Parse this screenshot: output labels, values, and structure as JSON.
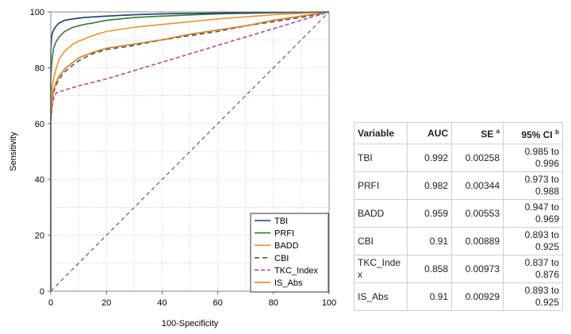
{
  "chart_data": {
    "type": "line",
    "title": "",
    "xlabel": "100-Specificity",
    "ylabel": "Sensitivity",
    "xlim": [
      0,
      100
    ],
    "ylim": [
      0,
      100
    ],
    "xticks": [
      0,
      20,
      40,
      60,
      80,
      100
    ],
    "yticks": [
      0,
      20,
      40,
      60,
      80,
      100
    ],
    "grid": true,
    "legend_position": "bottom-right",
    "reference_line": true,
    "series": [
      {
        "name": "TBI",
        "color": "#1f3a6e",
        "dash": "solid",
        "x": [
          0,
          0,
          0.3,
          0.6,
          1,
          2,
          3,
          5,
          8,
          12,
          20,
          30,
          40,
          60,
          80,
          100
        ],
        "y": [
          0,
          86,
          91,
          92.5,
          93.5,
          95,
          96,
          97,
          97.5,
          98,
          98.5,
          99,
          99.3,
          99.6,
          99.8,
          100
        ]
      },
      {
        "name": "PRFI",
        "color": "#2e7d32",
        "dash": "solid",
        "x": [
          0,
          0,
          0.3,
          0.6,
          1,
          2,
          3,
          5,
          8,
          12,
          15,
          20,
          30,
          40,
          60,
          80,
          100
        ],
        "y": [
          0,
          75,
          81,
          84,
          87,
          89.5,
          91,
          93,
          94.5,
          95.5,
          96,
          97,
          98,
          98.5,
          99.3,
          99.7,
          100
        ]
      },
      {
        "name": "BADD",
        "color": "#e8962e",
        "dash": "solid",
        "x": [
          0,
          0,
          0.5,
          1,
          2,
          3,
          5,
          8,
          10,
          15,
          20,
          30,
          40,
          60,
          80,
          100
        ],
        "y": [
          0,
          64,
          73,
          76,
          80,
          83,
          86,
          88.5,
          89.5,
          91.5,
          93,
          94.5,
          95.5,
          97.5,
          99,
          100
        ]
      },
      {
        "name": "CBI",
        "color": "#555555",
        "dash": "6,4",
        "x": [
          0,
          0,
          0.5,
          1,
          2,
          3,
          5,
          8,
          10,
          15,
          20,
          30,
          40,
          50,
          60,
          70,
          80,
          90,
          100
        ],
        "y": [
          0,
          61,
          68,
          71,
          74,
          76,
          78.5,
          81,
          82.5,
          85,
          86.5,
          88,
          90,
          91.5,
          93,
          95,
          96.5,
          98,
          100
        ]
      },
      {
        "name": "TKC_Index",
        "color": "#b04aa8",
        "dash": "5,3",
        "x": [
          0,
          0,
          0.5,
          1,
          2,
          5,
          10,
          20,
          30,
          40,
          50,
          60,
          70,
          80,
          90,
          100
        ],
        "y": [
          0,
          60,
          66,
          69,
          71,
          72,
          73.5,
          76,
          79,
          82,
          85,
          88,
          91,
          94,
          97,
          100
        ]
      },
      {
        "name": "IS_Abs",
        "color": "#d67a1e",
        "dash": "solid",
        "x": [
          0,
          0,
          0.5,
          1,
          2,
          3,
          5,
          8,
          10,
          15,
          20,
          30,
          40,
          50,
          60,
          70,
          80,
          90,
          100
        ],
        "y": [
          0,
          60,
          68,
          72,
          75,
          77,
          79.5,
          82,
          83.5,
          85.5,
          87,
          88.5,
          90,
          92,
          93.5,
          95,
          97,
          98.5,
          100
        ]
      }
    ]
  },
  "table": {
    "headers": {
      "variable": "Variable",
      "auc": "AUC",
      "se": "SE",
      "se_sup": "a",
      "ci": "95% CI",
      "ci_sup": "b"
    },
    "rows": [
      {
        "variable": "TBI",
        "auc": "0.992",
        "se": "0.00258",
        "ci_low": "0.985 to",
        "ci_high": "0.996"
      },
      {
        "variable": "PRFI",
        "auc": "0.982",
        "se": "0.00344",
        "ci_low": "0.973 to",
        "ci_high": "0.988"
      },
      {
        "variable": "BADD",
        "auc": "0.959",
        "se": "0.00553",
        "ci_low": "0.947 to",
        "ci_high": "0.969"
      },
      {
        "variable": "CBI",
        "auc": "0.91",
        "se": "0.00889",
        "ci_low": "0.893 to",
        "ci_high": "0.925"
      },
      {
        "variable": "TKC_Index",
        "auc": "0.858",
        "se": "0.00973",
        "ci_low": "0.837 to",
        "ci_high": "0.876"
      },
      {
        "variable": "IS_Abs",
        "auc": "0.91",
        "se": "0.00929",
        "ci_low": "0.893 to",
        "ci_high": "0.925"
      }
    ]
  }
}
